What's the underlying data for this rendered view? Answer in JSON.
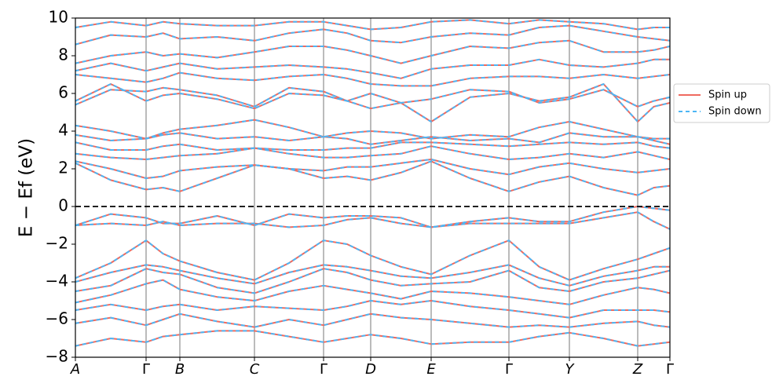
{
  "chart_data": {
    "type": "band_structure",
    "y_label": "E − Ef (eV)",
    "x": [
      0,
      0.45,
      0.9,
      1.115,
      1.33,
      1.805,
      2.28,
      2.72,
      3.16,
      3.46,
      3.76,
      4.145,
      4.53,
      5.025,
      5.52,
      5.905,
      6.29,
      6.725,
      7.16,
      7.365,
      7.57
    ],
    "xlim": [
      0,
      7.57
    ],
    "xticks": [
      {
        "value": 0,
        "label": "A"
      },
      {
        "value": 0.9,
        "label": "Γ"
      },
      {
        "value": 1.33,
        "label": "B"
      },
      {
        "value": 2.28,
        "label": "C"
      },
      {
        "value": 3.16,
        "label": "Γ"
      },
      {
        "value": 3.76,
        "label": "D"
      },
      {
        "value": 4.53,
        "label": "E"
      },
      {
        "value": 5.52,
        "label": "Γ"
      },
      {
        "value": 6.29,
        "label": "Y"
      },
      {
        "value": 7.16,
        "label": "Z"
      },
      {
        "value": 7.57,
        "label": "Γ"
      }
    ],
    "ylim": [
      -8,
      10
    ],
    "yticks": [
      {
        "value": -8,
        "label": "−8"
      },
      {
        "value": -6,
        "label": "−6"
      },
      {
        "value": -4,
        "label": "−4"
      },
      {
        "value": -2,
        "label": "−2"
      },
      0,
      2,
      4,
      6,
      8,
      10
    ],
    "reference_line": 0,
    "legend": "outside right",
    "series": [
      {
        "name": "Spin up",
        "color": "#ef6a5f",
        "dashed": false,
        "bands": [
          [
            -1.0,
            -0.4,
            -0.6,
            -0.9,
            -0.9,
            -0.5,
            -1.0,
            -0.4,
            -0.6,
            -0.5,
            -0.5,
            -0.6,
            -1.1,
            -0.8,
            -0.6,
            -0.8,
            -0.8,
            -0.3,
            0.0,
            -0.1,
            -0.2
          ],
          [
            -1.0,
            -0.9,
            -1.0,
            -0.8,
            -1.0,
            -0.9,
            -0.9,
            -1.1,
            -1.0,
            -0.7,
            -0.6,
            -0.9,
            -1.1,
            -0.9,
            -0.9,
            -0.9,
            -0.9,
            -0.6,
            -0.3,
            -0.8,
            -1.2
          ],
          [
            -3.8,
            -3.0,
            -1.8,
            -2.5,
            -2.9,
            -3.5,
            -3.9,
            -3.0,
            -1.8,
            -2.0,
            -2.6,
            -3.2,
            -3.6,
            -2.6,
            -1.8,
            -3.2,
            -3.9,
            -3.3,
            -2.8,
            -2.5,
            -2.2
          ],
          [
            -4.0,
            -3.5,
            -3.1,
            -3.2,
            -3.4,
            -3.8,
            -4.1,
            -3.5,
            -3.1,
            -3.2,
            -3.4,
            -3.7,
            -3.8,
            -3.5,
            -3.1,
            -3.8,
            -4.2,
            -3.7,
            -3.4,
            -3.2,
            -3.2
          ],
          [
            -4.5,
            -4.2,
            -3.3,
            -3.5,
            -3.6,
            -4.3,
            -4.6,
            -4.0,
            -3.3,
            -3.5,
            -3.9,
            -4.2,
            -4.1,
            -4.0,
            -3.4,
            -4.3,
            -4.5,
            -4.0,
            -3.8,
            -3.6,
            -3.4
          ],
          [
            -5.1,
            -4.7,
            -4.1,
            -3.9,
            -4.4,
            -4.8,
            -5.0,
            -4.5,
            -4.2,
            -4.4,
            -4.6,
            -4.9,
            -4.5,
            -4.6,
            -4.8,
            -5.0,
            -5.2,
            -4.7,
            -4.3,
            -4.4,
            -4.6
          ],
          [
            -5.5,
            -5.2,
            -5.5,
            -5.3,
            -5.2,
            -5.5,
            -5.3,
            -5.4,
            -5.5,
            -5.3,
            -5.0,
            -5.2,
            -5.0,
            -5.3,
            -5.5,
            -5.7,
            -5.9,
            -5.5,
            -5.5,
            -5.5,
            -5.6
          ],
          [
            -6.2,
            -5.9,
            -6.3,
            -6.0,
            -5.7,
            -6.1,
            -6.4,
            -6.0,
            -6.3,
            -6.0,
            -5.7,
            -5.9,
            -6.0,
            -6.2,
            -6.4,
            -6.3,
            -6.4,
            -6.2,
            -6.1,
            -6.3,
            -6.4
          ],
          [
            -7.4,
            -7.0,
            -7.2,
            -6.9,
            -6.8,
            -6.6,
            -6.6,
            -6.9,
            -7.2,
            -7.0,
            -6.8,
            -7.0,
            -7.3,
            -7.2,
            -7.2,
            -6.9,
            -6.7,
            -7.0,
            -7.4,
            -7.3,
            -7.2
          ],
          [
            2.3,
            1.4,
            0.9,
            1.0,
            0.8,
            1.5,
            2.2,
            2.0,
            1.5,
            1.6,
            1.4,
            1.8,
            2.4,
            1.5,
            0.8,
            1.3,
            1.6,
            1.0,
            0.6,
            1.0,
            1.1
          ],
          [
            2.4,
            2.0,
            1.5,
            1.6,
            1.9,
            2.1,
            2.2,
            2.0,
            1.9,
            2.1,
            2.1,
            2.3,
            2.5,
            2.0,
            1.7,
            2.1,
            2.3,
            2.0,
            1.8,
            1.9,
            2.0
          ],
          [
            2.8,
            2.6,
            2.5,
            2.6,
            2.7,
            2.8,
            3.1,
            2.8,
            2.6,
            2.6,
            2.7,
            2.8,
            3.2,
            2.8,
            2.5,
            2.6,
            2.8,
            2.6,
            2.9,
            2.7,
            2.5
          ],
          [
            3.4,
            3.0,
            3.0,
            3.2,
            3.3,
            3.0,
            3.1,
            3.0,
            3.0,
            3.1,
            3.1,
            3.4,
            3.4,
            3.3,
            3.2,
            3.3,
            3.4,
            3.3,
            3.4,
            3.2,
            3.1
          ],
          [
            3.8,
            3.5,
            3.6,
            3.8,
            3.9,
            3.6,
            3.7,
            3.5,
            3.7,
            3.6,
            3.3,
            3.5,
            3.7,
            3.5,
            3.6,
            3.4,
            3.9,
            3.7,
            3.7,
            3.5,
            3.3
          ],
          [
            4.3,
            4.0,
            3.6,
            3.9,
            4.1,
            4.3,
            4.6,
            4.2,
            3.7,
            3.9,
            4.0,
            3.9,
            3.6,
            3.8,
            3.7,
            4.2,
            4.5,
            4.1,
            3.7,
            3.6,
            3.6
          ],
          [
            5.6,
            6.5,
            5.6,
            5.9,
            6.0,
            5.7,
            5.2,
            6.0,
            5.9,
            5.6,
            6.0,
            5.5,
            4.5,
            5.8,
            6.0,
            5.6,
            5.8,
            6.5,
            4.5,
            5.3,
            5.5
          ],
          [
            5.4,
            6.2,
            6.1,
            6.3,
            6.2,
            5.9,
            5.3,
            6.3,
            6.1,
            5.6,
            5.2,
            5.5,
            5.7,
            6.2,
            6.1,
            5.5,
            5.7,
            6.2,
            5.3,
            5.6,
            5.8
          ],
          [
            7.0,
            6.8,
            6.6,
            6.8,
            7.1,
            6.8,
            6.7,
            6.9,
            7.0,
            6.8,
            6.5,
            6.4,
            6.4,
            6.8,
            6.9,
            6.9,
            6.8,
            7.0,
            6.8,
            6.9,
            7.0
          ],
          [
            7.2,
            7.6,
            7.2,
            7.4,
            7.6,
            7.3,
            7.4,
            7.5,
            7.4,
            7.3,
            7.1,
            6.8,
            7.3,
            7.5,
            7.5,
            7.8,
            7.5,
            7.4,
            7.6,
            7.8,
            7.8
          ],
          [
            7.6,
            8.0,
            8.2,
            8.0,
            8.1,
            7.9,
            8.2,
            8.5,
            8.5,
            8.3,
            8.0,
            7.6,
            8.0,
            8.5,
            8.4,
            8.7,
            8.8,
            8.2,
            8.2,
            8.3,
            8.5
          ],
          [
            8.6,
            9.1,
            9.0,
            9.2,
            8.9,
            9.0,
            8.8,
            9.2,
            9.4,
            9.2,
            8.8,
            8.7,
            9.0,
            9.2,
            9.1,
            9.5,
            9.6,
            9.3,
            9.0,
            8.9,
            8.8
          ],
          [
            9.5,
            9.8,
            9.6,
            9.8,
            9.7,
            9.6,
            9.6,
            9.8,
            9.8,
            9.6,
            9.4,
            9.5,
            9.8,
            9.9,
            9.7,
            9.9,
            9.8,
            9.7,
            9.4,
            9.5,
            9.5
          ]
        ]
      },
      {
        "name": "Spin down",
        "color": "#4db6f5",
        "dashed": true,
        "bands": [
          [
            -1.0,
            -0.4,
            -0.6,
            -0.9,
            -0.9,
            -0.5,
            -1.0,
            -0.4,
            -0.6,
            -0.5,
            -0.5,
            -0.6,
            -1.1,
            -0.8,
            -0.6,
            -0.8,
            -0.8,
            -0.3,
            0.0,
            -0.1,
            -0.2
          ],
          [
            -1.0,
            -0.9,
            -1.0,
            -0.8,
            -1.0,
            -0.9,
            -0.9,
            -1.1,
            -1.0,
            -0.7,
            -0.6,
            -0.9,
            -1.1,
            -0.9,
            -0.9,
            -0.9,
            -0.9,
            -0.6,
            -0.3,
            -0.8,
            -1.2
          ],
          [
            -3.8,
            -3.0,
            -1.8,
            -2.5,
            -2.9,
            -3.5,
            -3.9,
            -3.0,
            -1.8,
            -2.0,
            -2.6,
            -3.2,
            -3.6,
            -2.6,
            -1.8,
            -3.2,
            -3.9,
            -3.3,
            -2.8,
            -2.5,
            -2.2
          ],
          [
            -4.0,
            -3.5,
            -3.1,
            -3.2,
            -3.4,
            -3.8,
            -4.1,
            -3.5,
            -3.1,
            -3.2,
            -3.4,
            -3.7,
            -3.8,
            -3.5,
            -3.1,
            -3.8,
            -4.2,
            -3.7,
            -3.4,
            -3.2,
            -3.2
          ],
          [
            -4.5,
            -4.2,
            -3.3,
            -3.5,
            -3.6,
            -4.3,
            -4.6,
            -4.0,
            -3.3,
            -3.5,
            -3.9,
            -4.2,
            -4.1,
            -4.0,
            -3.4,
            -4.3,
            -4.5,
            -4.0,
            -3.8,
            -3.6,
            -3.4
          ],
          [
            -5.1,
            -4.7,
            -4.1,
            -3.9,
            -4.4,
            -4.8,
            -5.0,
            -4.5,
            -4.2,
            -4.4,
            -4.6,
            -4.9,
            -4.5,
            -4.6,
            -4.8,
            -5.0,
            -5.2,
            -4.7,
            -4.3,
            -4.4,
            -4.6
          ],
          [
            -5.5,
            -5.2,
            -5.5,
            -5.3,
            -5.2,
            -5.5,
            -5.3,
            -5.4,
            -5.5,
            -5.3,
            -5.0,
            -5.2,
            -5.0,
            -5.3,
            -5.5,
            -5.7,
            -5.9,
            -5.5,
            -5.5,
            -5.5,
            -5.6
          ],
          [
            -6.2,
            -5.9,
            -6.3,
            -6.0,
            -5.7,
            -6.1,
            -6.4,
            -6.0,
            -6.3,
            -6.0,
            -5.7,
            -5.9,
            -6.0,
            -6.2,
            -6.4,
            -6.3,
            -6.4,
            -6.2,
            -6.1,
            -6.3,
            -6.4
          ],
          [
            -7.4,
            -7.0,
            -7.2,
            -6.9,
            -6.8,
            -6.6,
            -6.6,
            -6.9,
            -7.2,
            -7.0,
            -6.8,
            -7.0,
            -7.3,
            -7.2,
            -7.2,
            -6.9,
            -6.7,
            -7.0,
            -7.4,
            -7.3,
            -7.2
          ],
          [
            2.3,
            1.4,
            0.9,
            1.0,
            0.8,
            1.5,
            2.2,
            2.0,
            1.5,
            1.6,
            1.4,
            1.8,
            2.4,
            1.5,
            0.8,
            1.3,
            1.6,
            1.0,
            0.6,
            1.0,
            1.1
          ],
          [
            2.4,
            2.0,
            1.5,
            1.6,
            1.9,
            2.1,
            2.2,
            2.0,
            1.9,
            2.1,
            2.1,
            2.3,
            2.5,
            2.0,
            1.7,
            2.1,
            2.3,
            2.0,
            1.8,
            1.9,
            2.0
          ],
          [
            2.8,
            2.6,
            2.5,
            2.6,
            2.7,
            2.8,
            3.1,
            2.8,
            2.6,
            2.6,
            2.7,
            2.8,
            3.2,
            2.8,
            2.5,
            2.6,
            2.8,
            2.6,
            2.9,
            2.7,
            2.5
          ],
          [
            3.4,
            3.0,
            3.0,
            3.2,
            3.3,
            3.0,
            3.1,
            3.0,
            3.0,
            3.1,
            3.1,
            3.4,
            3.4,
            3.3,
            3.2,
            3.3,
            3.4,
            3.3,
            3.4,
            3.2,
            3.1
          ],
          [
            3.8,
            3.5,
            3.6,
            3.8,
            3.9,
            3.6,
            3.7,
            3.5,
            3.7,
            3.6,
            3.3,
            3.5,
            3.7,
            3.5,
            3.6,
            3.4,
            3.9,
            3.7,
            3.7,
            3.5,
            3.3
          ],
          [
            4.3,
            4.0,
            3.6,
            3.9,
            4.1,
            4.3,
            4.6,
            4.2,
            3.7,
            3.9,
            4.0,
            3.9,
            3.6,
            3.8,
            3.7,
            4.2,
            4.5,
            4.1,
            3.7,
            3.6,
            3.6
          ],
          [
            5.6,
            6.5,
            5.6,
            5.9,
            6.0,
            5.7,
            5.2,
            6.0,
            5.9,
            5.6,
            6.0,
            5.5,
            4.5,
            5.8,
            6.0,
            5.6,
            5.8,
            6.5,
            4.5,
            5.3,
            5.5
          ],
          [
            5.4,
            6.2,
            6.1,
            6.3,
            6.2,
            5.9,
            5.3,
            6.3,
            6.1,
            5.6,
            5.2,
            5.5,
            5.7,
            6.2,
            6.1,
            5.5,
            5.7,
            6.2,
            5.3,
            5.6,
            5.8
          ],
          [
            7.0,
            6.8,
            6.6,
            6.8,
            7.1,
            6.8,
            6.7,
            6.9,
            7.0,
            6.8,
            6.5,
            6.4,
            6.4,
            6.8,
            6.9,
            6.9,
            6.8,
            7.0,
            6.8,
            6.9,
            7.0
          ],
          [
            7.2,
            7.6,
            7.2,
            7.4,
            7.6,
            7.3,
            7.4,
            7.5,
            7.4,
            7.3,
            7.1,
            6.8,
            7.3,
            7.5,
            7.5,
            7.8,
            7.5,
            7.4,
            7.6,
            7.8,
            7.8
          ],
          [
            7.6,
            8.0,
            8.2,
            8.0,
            8.1,
            7.9,
            8.2,
            8.5,
            8.5,
            8.3,
            8.0,
            7.6,
            8.0,
            8.5,
            8.4,
            8.7,
            8.8,
            8.2,
            8.2,
            8.3,
            8.5
          ],
          [
            8.6,
            9.1,
            9.0,
            9.2,
            8.9,
            9.0,
            8.8,
            9.2,
            9.4,
            9.2,
            8.8,
            8.7,
            9.0,
            9.2,
            9.1,
            9.5,
            9.6,
            9.3,
            9.0,
            8.9,
            8.8
          ],
          [
            9.5,
            9.8,
            9.6,
            9.8,
            9.7,
            9.6,
            9.6,
            9.8,
            9.8,
            9.6,
            9.4,
            9.5,
            9.8,
            9.9,
            9.7,
            9.9,
            9.8,
            9.7,
            9.4,
            9.5,
            9.5
          ]
        ]
      }
    ]
  }
}
